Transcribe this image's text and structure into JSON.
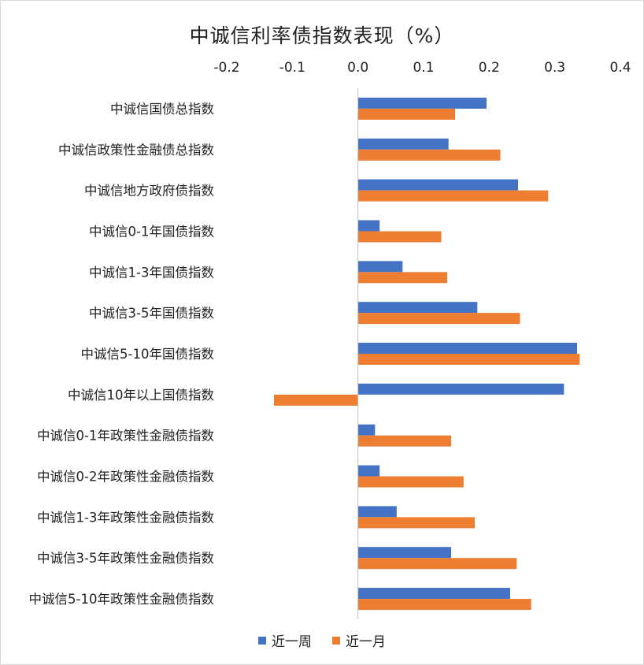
{
  "chart_data": {
    "type": "bar",
    "orientation": "horizontal",
    "title": "中诚信利率债指数表现（%）",
    "xlim": [
      -0.2,
      0.4
    ],
    "xticks": [
      {
        "label": "-0.2",
        "value": -0.2,
        "color": "#e00000"
      },
      {
        "label": "-0.1",
        "value": -0.1,
        "color": "#e00000"
      },
      {
        "label": "0.0",
        "value": 0.0,
        "color": "#222222"
      },
      {
        "label": "0.1",
        "value": 0.1,
        "color": "#222222"
      },
      {
        "label": "0.2",
        "value": 0.2,
        "color": "#222222"
      },
      {
        "label": "0.3",
        "value": 0.3,
        "color": "#222222"
      },
      {
        "label": "0.4",
        "value": 0.4,
        "color": "#222222"
      }
    ],
    "categories": [
      "中诚信国债总指数",
      "中诚信政策性金融债总指数",
      "中诚信地方政府债指数",
      "中诚信0-1年国债指数",
      "中诚信1-3年国债指数",
      "中诚信3-5年国债指数",
      "中诚信5-10年国债指数",
      "中诚信10年以上国债指数",
      "中诚信0-1年政策性金融债指数",
      "中诚信0-2年政策性金融债指数",
      "中诚信1-3年政策性金融债指数",
      "中诚信3-5年政策性金融债指数",
      "中诚信5-10年政策性金融债指数"
    ],
    "series": [
      {
        "name": "近一周",
        "color": "#4472c4",
        "values": [
          0.196,
          0.138,
          0.244,
          0.033,
          0.068,
          0.182,
          0.334,
          0.314,
          0.026,
          0.033,
          0.059,
          0.142,
          0.232
        ]
      },
      {
        "name": "近一月",
        "color": "#ed7d31",
        "values": [
          0.148,
          0.217,
          0.29,
          0.127,
          0.136,
          0.247,
          0.338,
          -0.128,
          0.142,
          0.161,
          0.178,
          0.242,
          0.264
        ]
      }
    ],
    "grid": false,
    "legend_position": "bottom"
  }
}
